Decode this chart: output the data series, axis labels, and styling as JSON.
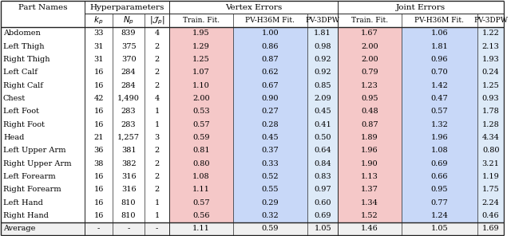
{
  "part_names": [
    "Abdomen",
    "Left Thigh",
    "Right Thigh",
    "Left Calf",
    "Right Calf",
    "Chest",
    "Left Foot",
    "Right Foot",
    "Head",
    "Left Upper Arm",
    "Right Upper Arm",
    "Left Forearm",
    "Right Forearm",
    "Left Hand",
    "Right Hand",
    "Average"
  ],
  "kp": [
    33,
    31,
    31,
    16,
    16,
    42,
    16,
    16,
    21,
    36,
    38,
    16,
    16,
    16,
    16,
    "-"
  ],
  "Np": [
    839,
    375,
    370,
    284,
    284,
    "1,490",
    283,
    283,
    "1,257",
    381,
    382,
    316,
    316,
    810,
    810,
    "-"
  ],
  "Jp": [
    4,
    2,
    2,
    2,
    2,
    4,
    1,
    1,
    3,
    2,
    2,
    2,
    2,
    1,
    1,
    "-"
  ],
  "vertex_train": [
    1.95,
    1.29,
    1.25,
    1.07,
    1.1,
    2.0,
    0.53,
    0.57,
    0.59,
    0.81,
    0.8,
    1.08,
    1.11,
    0.57,
    0.56,
    1.11
  ],
  "vertex_pvh36m": [
    1.0,
    0.86,
    0.87,
    0.62,
    0.67,
    0.9,
    0.27,
    0.28,
    0.45,
    0.37,
    0.33,
    0.52,
    0.55,
    0.29,
    0.32,
    0.59
  ],
  "vertex_pv3dpw": [
    1.81,
    0.98,
    0.92,
    0.92,
    0.85,
    2.09,
    0.45,
    0.41,
    0.5,
    0.64,
    0.84,
    0.83,
    0.97,
    0.6,
    0.69,
    1.05
  ],
  "joint_train": [
    1.67,
    2.0,
    2.0,
    0.79,
    1.23,
    0.95,
    0.48,
    0.87,
    1.89,
    1.96,
    1.9,
    1.13,
    1.37,
    1.34,
    1.52,
    1.46
  ],
  "joint_pvh36m": [
    1.06,
    1.81,
    0.96,
    0.7,
    1.42,
    0.47,
    0.57,
    1.32,
    1.96,
    1.08,
    0.69,
    0.66,
    0.95,
    0.77,
    1.24,
    1.05
  ],
  "joint_pv3dpw": [
    1.22,
    2.13,
    1.93,
    0.24,
    1.25,
    0.93,
    1.78,
    1.28,
    4.34,
    0.8,
    3.21,
    1.19,
    1.75,
    2.24,
    0.46,
    1.69
  ],
  "col_white": "#ffffff",
  "col_pink": "#f5c8c8",
  "col_blue_mid": "#c8d8f8",
  "col_blue_light": "#ddeaf8",
  "col_avg_bg": "#f0f0f0"
}
